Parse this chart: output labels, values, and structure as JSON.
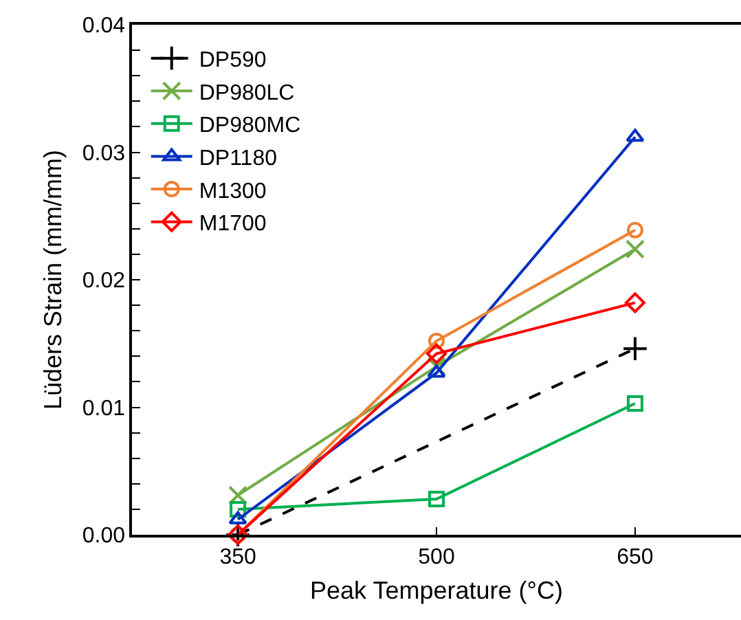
{
  "chart_data": {
    "type": "line",
    "xlabel": "Peak Temperature (°C)",
    "ylabel": "Lüders Strain (mm/mm)",
    "x": [
      350,
      500,
      650
    ],
    "series": [
      {
        "name": "DP590",
        "color": "#000000",
        "x": [
          350,
          650
        ],
        "values": [
          0,
          0.0146
        ],
        "marker": "cross",
        "line_style": "dashed"
      },
      {
        "name": "DP980LC",
        "color": "#70ad47",
        "values": [
          0.0031,
          0.0132,
          0.0224
        ],
        "marker": "x"
      },
      {
        "name": "DP980MC",
        "color": "#00b050",
        "values": [
          0.002,
          0.0028,
          0.0103
        ],
        "marker": "square"
      },
      {
        "name": "DP1180",
        "color": "#0030c0",
        "values": [
          0.0012,
          0.0127,
          0.0312
        ],
        "marker": "triangle"
      },
      {
        "name": "M1300",
        "color": "#f08030",
        "values": [
          0,
          0.0152,
          0.0239
        ],
        "marker": "circle"
      },
      {
        "name": "M1700",
        "color": "#ff0000",
        "values": [
          0,
          0.0142,
          0.0182
        ],
        "marker": "diamond"
      }
    ],
    "xlim": [
      270,
      730
    ],
    "xticks": [
      350,
      500,
      650
    ],
    "ylim": [
      0,
      0.04
    ],
    "yticks": [
      {
        "value": 0,
        "label": "0.00"
      },
      {
        "value": 0.002,
        "label": null
      },
      {
        "value": 0.004,
        "label": null
      },
      {
        "value": 0.006,
        "label": null
      },
      {
        "value": 0.008,
        "label": null
      },
      {
        "value": 0.01,
        "label": "0.01"
      },
      {
        "value": 0.012,
        "label": null
      },
      {
        "value": 0.014,
        "label": null
      },
      {
        "value": 0.016,
        "label": null
      },
      {
        "value": 0.018,
        "label": null
      },
      {
        "value": 0.02,
        "label": "0.02"
      },
      {
        "value": 0.022,
        "label": null
      },
      {
        "value": 0.024,
        "label": null
      },
      {
        "value": 0.026,
        "label": null
      },
      {
        "value": 0.028,
        "label": null
      },
      {
        "value": 0.03,
        "label": "0.03"
      },
      {
        "value": 0.032,
        "label": null
      },
      {
        "value": 0.034,
        "label": null
      },
      {
        "value": 0.036,
        "label": null
      },
      {
        "value": 0.038,
        "label": null
      },
      {
        "value": 0.04,
        "label": "0.04"
      }
    ],
    "grid": false,
    "legend": "top left",
    "line_style": "solid"
  }
}
